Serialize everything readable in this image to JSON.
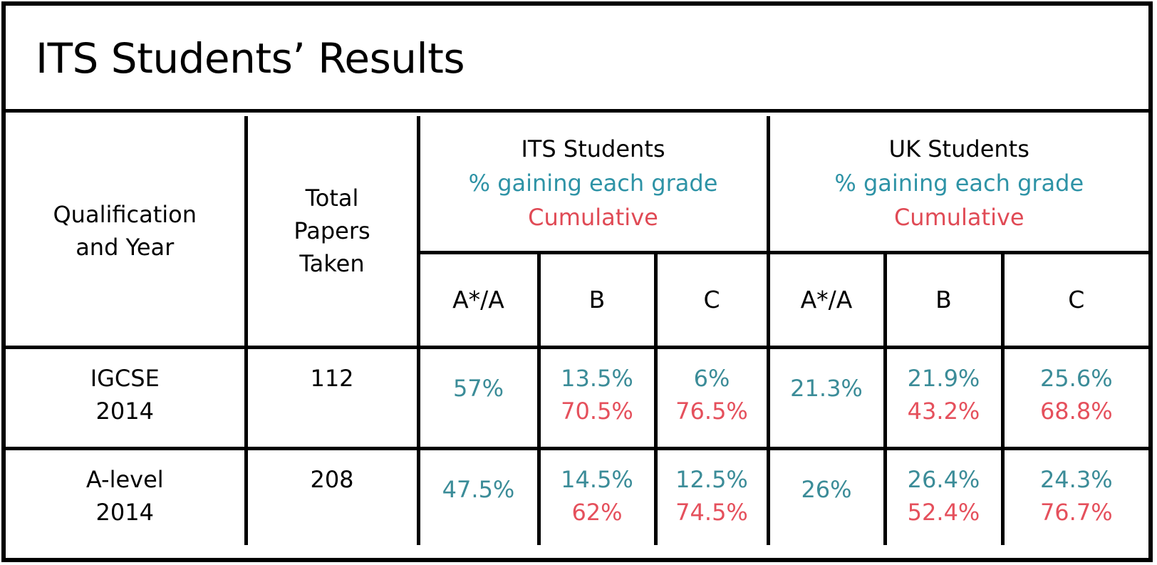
{
  "title": "ITS Students’ Results",
  "colors": {
    "subtitle_teal": "#2e93a6",
    "cumulative_red": "#e04a55",
    "value_teal": "#3b8c98",
    "value_red": "#e5505c"
  },
  "header": {
    "qualification": [
      "Qualification",
      "and Year"
    ],
    "total_papers": [
      "Total",
      "Papers",
      "Taken"
    ],
    "its_group": {
      "name": "ITS Students",
      "subtitle": "% gaining each grade",
      "cumulative": "Cumulative"
    },
    "uk_group": {
      "name": "UK Students",
      "subtitle": "% gaining each grade",
      "cumulative": "Cumulative"
    },
    "grades": [
      "A*/A",
      "B",
      "C"
    ]
  },
  "rows": [
    {
      "qualification": "IGCSE",
      "year": "2014",
      "papers": "112",
      "its": [
        {
          "pct": "57%",
          "cum": ""
        },
        {
          "pct": "13.5%",
          "cum": "70.5%"
        },
        {
          "pct": "6%",
          "cum": "76.5%"
        }
      ],
      "uk": [
        {
          "pct": "21.3%",
          "cum": ""
        },
        {
          "pct": "21.9%",
          "cum": "43.2%"
        },
        {
          "pct": "25.6%",
          "cum": "68.8%"
        }
      ]
    },
    {
      "qualification": "A-level",
      "year": "2014",
      "papers": "208",
      "its": [
        {
          "pct": "47.5%",
          "cum": ""
        },
        {
          "pct": "14.5%",
          "cum": "62%"
        },
        {
          "pct": "12.5%",
          "cum": "74.5%"
        }
      ],
      "uk": [
        {
          "pct": "26%",
          "cum": ""
        },
        {
          "pct": "26.4%",
          "cum": "52.4%"
        },
        {
          "pct": "24.3%",
          "cum": "76.7%"
        }
      ]
    }
  ]
}
